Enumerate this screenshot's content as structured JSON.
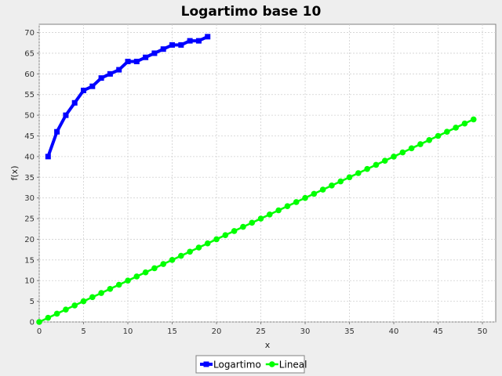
{
  "chart_data": {
    "type": "line",
    "title": "Logartimo base 10",
    "xlabel": "x",
    "ylabel": "f(x)",
    "xlim": [
      0,
      51.5
    ],
    "ylim": [
      0,
      72
    ],
    "x_ticks": [
      0,
      5,
      10,
      15,
      20,
      25,
      30,
      35,
      40,
      45,
      50
    ],
    "y_ticks": [
      0,
      5,
      10,
      15,
      20,
      25,
      30,
      35,
      40,
      45,
      50,
      55,
      60,
      65,
      70
    ],
    "grid": true,
    "legend_position": "bottom",
    "series": [
      {
        "name": "Logartimo",
        "color": "#0000ff",
        "marker": "square",
        "x": [
          1,
          2,
          3,
          4,
          5,
          6,
          7,
          8,
          9,
          10,
          11,
          12,
          13,
          14,
          15,
          16,
          17,
          18,
          19
        ],
        "values": [
          40,
          46,
          50,
          53,
          56,
          57,
          59,
          60,
          61,
          63,
          63,
          64,
          65,
          66,
          67,
          67,
          68,
          68,
          69
        ]
      },
      {
        "name": "Lineal",
        "color": "#00ff00",
        "marker": "circle",
        "x": [
          0,
          1,
          2,
          3,
          4,
          5,
          6,
          7,
          8,
          9,
          10,
          11,
          12,
          13,
          14,
          15,
          16,
          17,
          18,
          19,
          20,
          21,
          22,
          23,
          24,
          25,
          26,
          27,
          28,
          29,
          30,
          31,
          32,
          33,
          34,
          35,
          36,
          37,
          38,
          39,
          40,
          41,
          42,
          43,
          44,
          45,
          46,
          47,
          48,
          49
        ],
        "values": [
          0,
          1,
          2,
          3,
          4,
          5,
          6,
          7,
          8,
          9,
          10,
          11,
          12,
          13,
          14,
          15,
          16,
          17,
          18,
          19,
          20,
          21,
          22,
          23,
          24,
          25,
          26,
          27,
          28,
          29,
          30,
          31,
          32,
          33,
          34,
          35,
          36,
          37,
          38,
          39,
          40,
          41,
          42,
          43,
          44,
          45,
          46,
          47,
          48,
          49
        ]
      }
    ]
  }
}
